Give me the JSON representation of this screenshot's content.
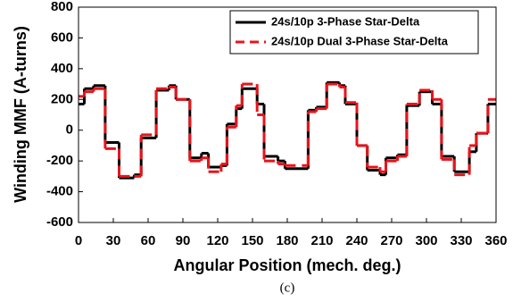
{
  "chart_data": {
    "type": "line",
    "drawstyle": "steps-post",
    "xlabel": "Angular Position (mech. deg.)",
    "ylabel": "Winding MMF (A-turns)",
    "caption": "(c)",
    "x": [
      0,
      5,
      13,
      23,
      35,
      48,
      54,
      67,
      78,
      84,
      96,
      106,
      112,
      123,
      128,
      136,
      141,
      154,
      160,
      172,
      178,
      198,
      205,
      214,
      225,
      230,
      240,
      249,
      260,
      265,
      275,
      283,
      294,
      305,
      313,
      324,
      337,
      343,
      353,
      360
    ],
    "series": [
      {
        "name": "24s/10p 3-Phase Star-Delta",
        "color": "#000000",
        "dash": "solid",
        "values": [
          170,
          270,
          290,
          -80,
          -310,
          -290,
          -50,
          260,
          290,
          200,
          -180,
          -150,
          -240,
          -230,
          40,
          140,
          270,
          170,
          -170,
          -200,
          -250,
          130,
          150,
          310,
          290,
          170,
          -100,
          -260,
          -290,
          -180,
          -160,
          160,
          250,
          170,
          -170,
          -270,
          -140,
          -20,
          170,
          170
        ]
      },
      {
        "name": "24s/10p Dual 3-Phase Star-Delta",
        "color": "#e8141b",
        "dash": "dashed",
        "values": [
          220,
          250,
          270,
          -120,
          -300,
          -300,
          -30,
          270,
          280,
          200,
          -200,
          -180,
          -270,
          -220,
          20,
          160,
          300,
          100,
          -200,
          -220,
          -230,
          120,
          140,
          300,
          280,
          180,
          -100,
          -240,
          -270,
          -200,
          -170,
          170,
          260,
          200,
          -190,
          -290,
          -100,
          -20,
          200,
          200
        ]
      }
    ],
    "xlim": [
      0,
      360
    ],
    "xticks": [
      0,
      30,
      60,
      90,
      120,
      150,
      180,
      210,
      240,
      270,
      300,
      330,
      360
    ],
    "ylim": [
      -600,
      800
    ],
    "yticks": [
      -600,
      -400,
      -200,
      0,
      200,
      400,
      600,
      800
    ],
    "legend": "upper right"
  }
}
